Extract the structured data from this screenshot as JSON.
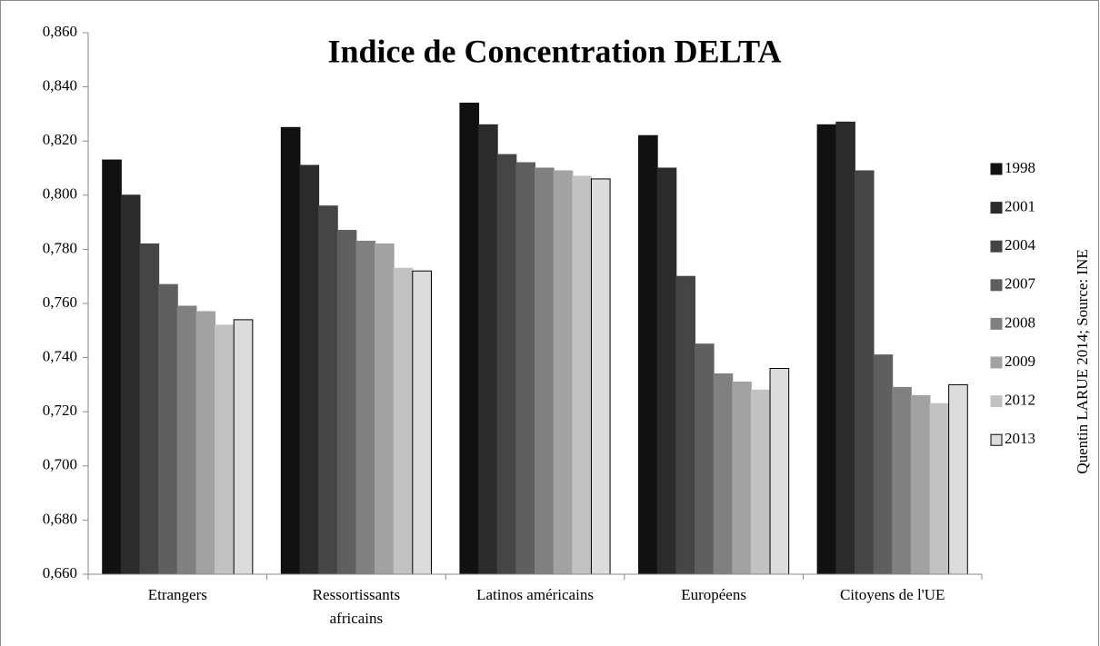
{
  "chart_data": {
    "type": "bar",
    "title": "Indice de Concentration DELTA",
    "source": "Quentin LARUE 2014; Source: INE",
    "categories": [
      "Etrangers",
      "Ressortissants africains",
      "Latinos américains",
      "Européens",
      "Citoyens de l'UE"
    ],
    "series": [
      {
        "name": "1998",
        "color": "#111111",
        "values": [
          0.813,
          0.825,
          0.834,
          0.822,
          0.826
        ]
      },
      {
        "name": "2001",
        "color": "#2b2b2b",
        "values": [
          0.8,
          0.811,
          0.826,
          0.81,
          0.827
        ]
      },
      {
        "name": "2004",
        "color": "#454545",
        "values": [
          0.782,
          0.796,
          0.815,
          0.77,
          0.809
        ]
      },
      {
        "name": "2007",
        "color": "#5f5f5f",
        "values": [
          0.767,
          0.787,
          0.812,
          0.745,
          0.741
        ]
      },
      {
        "name": "2008",
        "color": "#808080",
        "values": [
          0.759,
          0.783,
          0.81,
          0.734,
          0.729
        ]
      },
      {
        "name": "2009",
        "color": "#a2a2a2",
        "values": [
          0.757,
          0.782,
          0.809,
          0.731,
          0.726
        ]
      },
      {
        "name": "2012",
        "color": "#c2c2c2",
        "values": [
          0.752,
          0.773,
          0.807,
          0.728,
          0.723
        ]
      },
      {
        "name": "2013",
        "color": "#dcdcdc",
        "values": [
          0.754,
          0.772,
          0.806,
          0.736,
          0.73
        ]
      }
    ],
    "ylim": [
      0.66,
      0.86
    ],
    "yticks": [
      {
        "value": 0.66,
        "label": "0,660"
      },
      {
        "value": 0.68,
        "label": "0,680"
      },
      {
        "value": 0.7,
        "label": "0,700"
      },
      {
        "value": 0.72,
        "label": "0,720"
      },
      {
        "value": 0.74,
        "label": "0,740"
      },
      {
        "value": 0.76,
        "label": "0,760"
      },
      {
        "value": 0.78,
        "label": "0,780"
      },
      {
        "value": 0.8,
        "label": "0,800"
      },
      {
        "value": 0.82,
        "label": "0,820"
      },
      {
        "value": 0.84,
        "label": "0,840"
      },
      {
        "value": 0.86,
        "label": "0,860"
      }
    ],
    "grid": false,
    "legend": "right"
  }
}
